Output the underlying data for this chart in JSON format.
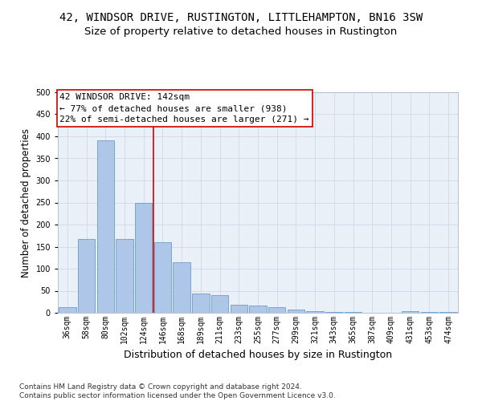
{
  "title": "42, WINDSOR DRIVE, RUSTINGTON, LITTLEHAMPTON, BN16 3SW",
  "subtitle": "Size of property relative to detached houses in Rustington",
  "xlabel": "Distribution of detached houses by size in Rustington",
  "ylabel": "Number of detached properties",
  "categories": [
    "36sqm",
    "58sqm",
    "80sqm",
    "102sqm",
    "124sqm",
    "146sqm",
    "168sqm",
    "189sqm",
    "211sqm",
    "233sqm",
    "255sqm",
    "277sqm",
    "299sqm",
    "321sqm",
    "343sqm",
    "365sqm",
    "387sqm",
    "409sqm",
    "431sqm",
    "453sqm",
    "474sqm"
  ],
  "values": [
    12,
    167,
    390,
    167,
    250,
    160,
    115,
    43,
    40,
    18,
    16,
    13,
    8,
    4,
    2,
    1,
    0,
    0,
    4,
    1,
    1
  ],
  "bar_color": "#aec6e8",
  "bar_edge_color": "#5a8fc2",
  "vline_x": 4.5,
  "vline_color": "#cc0000",
  "annotation_text": "42 WINDSOR DRIVE: 142sqm\n← 77% of detached houses are smaller (938)\n22% of semi-detached houses are larger (271) →",
  "annotation_box_color": "#ffffff",
  "annotation_box_edge_color": "#cc0000",
  "ylim": [
    0,
    500
  ],
  "yticks": [
    0,
    50,
    100,
    150,
    200,
    250,
    300,
    350,
    400,
    450,
    500
  ],
  "plot_bg_color": "#eaf0f8",
  "footer": "Contains HM Land Registry data © Crown copyright and database right 2024.\nContains public sector information licensed under the Open Government Licence v3.0.",
  "title_fontsize": 10,
  "subtitle_fontsize": 9.5,
  "xlabel_fontsize": 9,
  "ylabel_fontsize": 8.5,
  "tick_fontsize": 7,
  "annotation_fontsize": 8,
  "footer_fontsize": 6.5
}
